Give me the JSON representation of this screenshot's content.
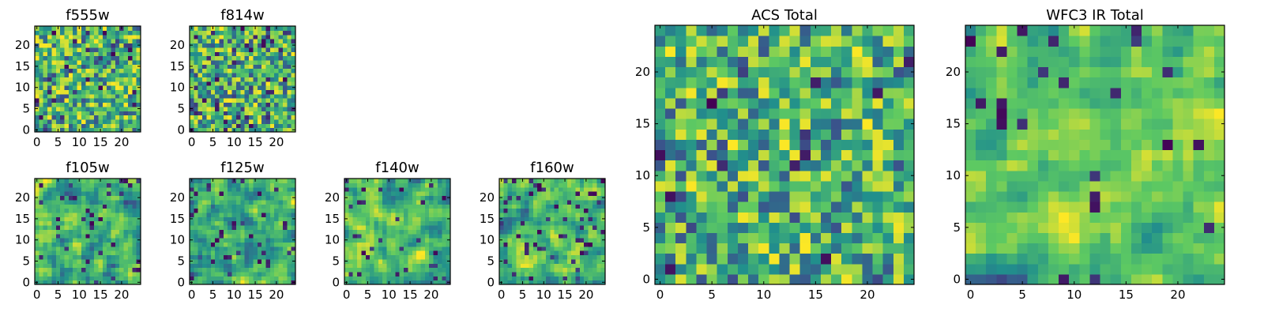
{
  "figure": {
    "panels": [
      {
        "id": "f555w",
        "title": "f555w",
        "size": 25,
        "seed": 11,
        "blur": 0,
        "dark_frac": 0.05,
        "x_ticks": [
          "0",
          "5",
          "10",
          "15",
          "20"
        ],
        "y_ticks": [
          "0",
          "5",
          "10",
          "15",
          "20"
        ]
      },
      {
        "id": "f814w",
        "title": "f814w",
        "size": 25,
        "seed": 23,
        "blur": 0,
        "dark_frac": 0.07,
        "x_ticks": [
          "0",
          "5",
          "10",
          "15",
          "20"
        ],
        "y_ticks": [
          "0",
          "5",
          "10",
          "15",
          "20"
        ]
      },
      {
        "id": "f105w",
        "title": "f105w",
        "size": 25,
        "seed": 37,
        "blur": 1,
        "dark_frac": 0.06,
        "x_ticks": [
          "0",
          "5",
          "10",
          "15",
          "20"
        ],
        "y_ticks": [
          "0",
          "5",
          "10",
          "15",
          "20"
        ]
      },
      {
        "id": "f125w",
        "title": "f125w",
        "size": 25,
        "seed": 41,
        "blur": 1,
        "dark_frac": 0.07,
        "x_ticks": [
          "0",
          "5",
          "10",
          "15",
          "20"
        ],
        "y_ticks": [
          "0",
          "5",
          "10",
          "15",
          "20"
        ]
      },
      {
        "id": "f140w",
        "title": "f140w",
        "size": 25,
        "seed": 53,
        "blur": 1,
        "dark_frac": 0.06,
        "x_ticks": [
          "0",
          "5",
          "10",
          "15",
          "20"
        ],
        "y_ticks": [
          "0",
          "5",
          "10",
          "15",
          "20"
        ]
      },
      {
        "id": "f160w",
        "title": "f160w",
        "size": 25,
        "seed": 67,
        "blur": 1,
        "dark_frac": 0.06,
        "x_ticks": [
          "0",
          "5",
          "10",
          "15",
          "20"
        ],
        "y_ticks": [
          "0",
          "5",
          "10",
          "15",
          "20"
        ]
      },
      {
        "id": "acs-total",
        "title": "ACS Total",
        "size": 25,
        "seed": 79,
        "blur": 0,
        "dark_frac": 0.03,
        "x_ticks": [
          "0",
          "5",
          "10",
          "15",
          "20"
        ],
        "y_ticks": [
          "0",
          "5",
          "10",
          "15",
          "20"
        ]
      },
      {
        "id": "wfc3-ir-total",
        "title": "WFC3 IR Total",
        "size": 25,
        "seed": 97,
        "blur": 1,
        "dark_frac": 0.04,
        "x_ticks": [
          "0",
          "5",
          "10",
          "15",
          "20"
        ],
        "y_ticks": [
          "0",
          "5",
          "10",
          "15",
          "20"
        ]
      }
    ]
  },
  "chart_data": [
    {
      "type": "heatmap",
      "title": "f555w",
      "xlim": [
        0,
        24
      ],
      "ylim": [
        0,
        24
      ],
      "grid": false
    },
    {
      "type": "heatmap",
      "title": "f814w",
      "xlim": [
        0,
        24
      ],
      "ylim": [
        0,
        24
      ],
      "grid": false
    },
    {
      "type": "heatmap",
      "title": "f105w",
      "xlim": [
        0,
        24
      ],
      "ylim": [
        0,
        24
      ],
      "grid": false
    },
    {
      "type": "heatmap",
      "title": "f125w",
      "xlim": [
        0,
        24
      ],
      "ylim": [
        0,
        24
      ],
      "grid": false
    },
    {
      "type": "heatmap",
      "title": "f140w",
      "xlim": [
        0,
        24
      ],
      "ylim": [
        0,
        24
      ],
      "grid": false
    },
    {
      "type": "heatmap",
      "title": "f160w",
      "xlim": [
        0,
        24
      ],
      "ylim": [
        0,
        24
      ],
      "grid": false
    },
    {
      "type": "heatmap",
      "title": "ACS Total",
      "xlim": [
        0,
        24
      ],
      "ylim": [
        0,
        24
      ],
      "grid": false
    },
    {
      "type": "heatmap",
      "title": "WFC3 IR Total",
      "xlim": [
        0,
        24
      ],
      "ylim": [
        0,
        24
      ],
      "grid": false
    }
  ],
  "colormap": [
    "#440154",
    "#3b528b",
    "#21908c",
    "#5dc962",
    "#fde725"
  ]
}
